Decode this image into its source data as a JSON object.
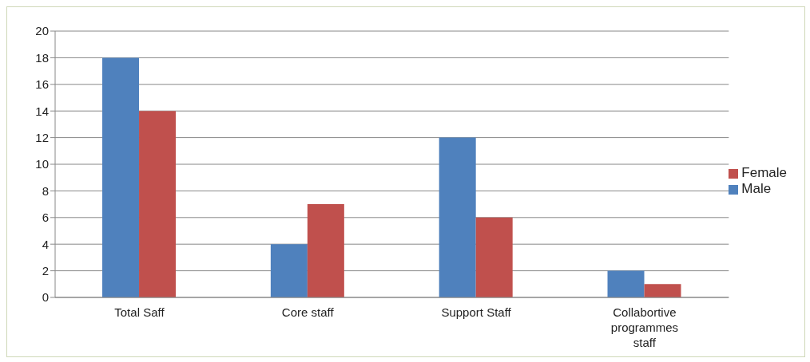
{
  "chart_data": {
    "type": "bar",
    "categories": [
      "Total Saff",
      "Core staff",
      "Support Staff",
      "Collabortive programmes staff"
    ],
    "series": [
      {
        "name": "Male",
        "color": "#4f81bd",
        "values": [
          18,
          4,
          12,
          2
        ]
      },
      {
        "name": "Female",
        "color": "#c0504d",
        "values": [
          14,
          7,
          6,
          1
        ]
      }
    ],
    "ylim": [
      0,
      20
    ],
    "yticks": [
      0,
      2,
      4,
      6,
      8,
      10,
      12,
      14,
      16,
      18,
      20
    ],
    "grid": "y",
    "legend": "right"
  }
}
